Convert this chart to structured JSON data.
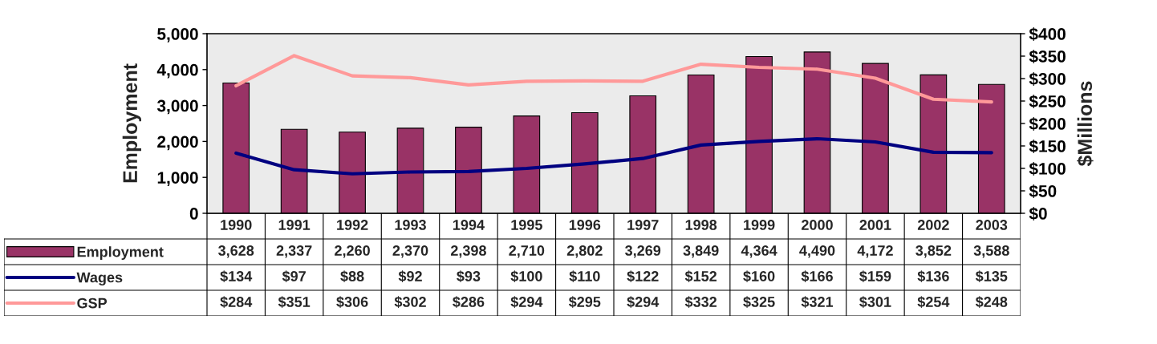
{
  "chart_data": {
    "type": "bar",
    "ylabel": "Employment",
    "y2label": "$Millions",
    "categories": [
      "1990",
      "1991",
      "1992",
      "1993",
      "1994",
      "1995",
      "1996",
      "1997",
      "1998",
      "1999",
      "2000",
      "2001",
      "2002",
      "2003"
    ],
    "series": [
      {
        "name": "Employment",
        "color": "#993366",
        "values": [
          3628,
          2337,
          2260,
          2370,
          2398,
          2710,
          2802,
          3269,
          3849,
          4364,
          4490,
          4172,
          3852,
          3588
        ],
        "value_labels": [
          "3,628",
          "2,337",
          "2,260",
          "2,370",
          "2,398",
          "2,710",
          "2,802",
          "3,269",
          "3,849",
          "4,364",
          "4,490",
          "4,172",
          "3,852",
          "3,588"
        ]
      },
      {
        "name": "Wages",
        "type": "line",
        "axis": "y2",
        "color": "#000080",
        "values": [
          134,
          97,
          88,
          92,
          93,
          100,
          110,
          122,
          152,
          160,
          166,
          159,
          136,
          135
        ],
        "value_labels": [
          "$134",
          "$97",
          "$88",
          "$92",
          "$93",
          "$100",
          "$110",
          "$122",
          "$152",
          "$160",
          "$166",
          "$159",
          "$136",
          "$135"
        ]
      },
      {
        "name": "GSP",
        "type": "line",
        "axis": "y2",
        "color": "#ff9999",
        "values": [
          284,
          351,
          306,
          302,
          286,
          294,
          295,
          294,
          332,
          325,
          321,
          301,
          254,
          248
        ],
        "value_labels": [
          "$284",
          "$351",
          "$306",
          "$302",
          "$286",
          "$294",
          "$295",
          "$294",
          "$332",
          "$325",
          "$321",
          "$301",
          "$254",
          "$248"
        ]
      }
    ],
    "ylim": [
      0,
      5000
    ],
    "yticks": [
      {
        "value": 0,
        "label": "0"
      },
      {
        "value": 1000,
        "label": "1,000"
      },
      {
        "value": 2000,
        "label": "2,000"
      },
      {
        "value": 3000,
        "label": "3,000"
      },
      {
        "value": 4000,
        "label": "4,000"
      },
      {
        "value": 5000,
        "label": "5,000"
      }
    ],
    "y2lim": [
      0,
      400
    ],
    "y2ticks": [
      {
        "value": 0,
        "label": "$0"
      },
      {
        "value": 50,
        "label": "$50"
      },
      {
        "value": 100,
        "label": "$100"
      },
      {
        "value": 150,
        "label": "$150"
      },
      {
        "value": 200,
        "label": "$200"
      },
      {
        "value": 250,
        "label": "$250"
      },
      {
        "value": 300,
        "label": "$300"
      },
      {
        "value": 350,
        "label": "$350"
      },
      {
        "value": 400,
        "label": "$400"
      }
    ],
    "legend": "bottom",
    "grid": false
  }
}
